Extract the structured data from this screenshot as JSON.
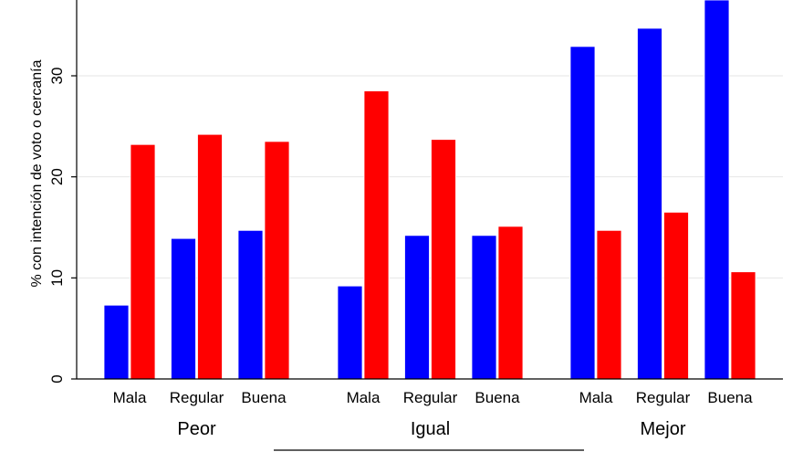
{
  "chart_data": {
    "type": "bar",
    "ylabel": "% con intención de voto o cercanía",
    "ylim": [
      0,
      37.5
    ],
    "yticks": [
      0,
      10,
      20,
      30
    ],
    "grid": true,
    "groups": [
      {
        "label": "Peor",
        "categories": [
          "Mala",
          "Regular",
          "Buena"
        ]
      },
      {
        "label": "Igual",
        "categories": [
          "Mala",
          "Regular",
          "Buena"
        ]
      },
      {
        "label": "Mejor",
        "categories": [
          "Mala",
          "Regular",
          "Buena"
        ]
      }
    ],
    "series": [
      {
        "color": "#0000ff",
        "values": [
          [
            7.3,
            13.9,
            14.7
          ],
          [
            9.2,
            14.2,
            14.2
          ],
          [
            32.9,
            34.7,
            37.5
          ]
        ]
      },
      {
        "color": "#ff0000",
        "values": [
          [
            23.2,
            24.2,
            23.5
          ],
          [
            28.5,
            23.7,
            15.1
          ],
          [
            14.7,
            16.5,
            10.6
          ]
        ]
      }
    ]
  }
}
